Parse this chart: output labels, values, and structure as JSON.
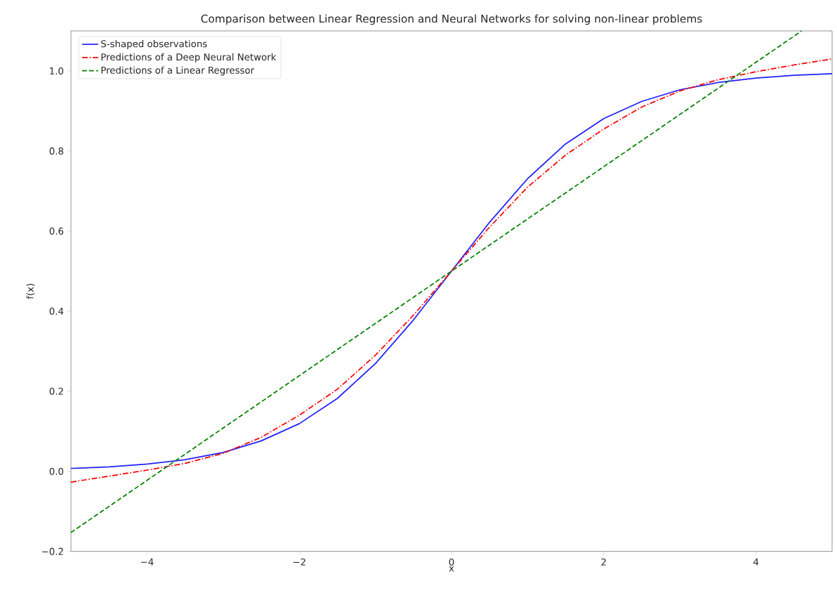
{
  "chart_data": {
    "type": "line",
    "title": "Comparison between Linear Regression and Neural Networks for solving non-linear problems",
    "xlabel": "x",
    "ylabel": "f(x)",
    "xlim": [
      -5,
      5
    ],
    "ylim": [
      -0.2,
      1.1
    ],
    "xticks": [
      {
        "value": -4,
        "label": "−4"
      },
      {
        "value": -2,
        "label": "−2"
      },
      0,
      2,
      4
    ],
    "yticks": [
      {
        "value": -0.2,
        "label": "−0.2"
      },
      {
        "value": 0,
        "label": "0.0"
      },
      {
        "value": 0.2,
        "label": "0.2"
      },
      {
        "value": 0.4,
        "label": "0.4"
      },
      {
        "value": 0.6,
        "label": "0.6"
      },
      {
        "value": 0.8,
        "label": "0.8"
      },
      {
        "value": 1,
        "label": "1.0"
      }
    ],
    "legend": "top left",
    "grid": false,
    "series": [
      {
        "name": "S-shaped observations",
        "color": "#2020ff",
        "line_style": "solid",
        "x": [
          -5,
          -4.5,
          -4,
          -3.5,
          -3,
          -2.5,
          -2,
          -1.5,
          -1,
          -0.5,
          0,
          0.5,
          1,
          1.5,
          2,
          2.5,
          3,
          3.5,
          4,
          4.5,
          5
        ],
        "values": [
          0.007,
          0.011,
          0.018,
          0.029,
          0.047,
          0.076,
          0.119,
          0.182,
          0.269,
          0.378,
          0.5,
          0.622,
          0.731,
          0.818,
          0.881,
          0.924,
          0.953,
          0.971,
          0.982,
          0.989,
          0.993
        ]
      },
      {
        "name": "Predictions of a Deep Neural Network",
        "color": "#ff0000",
        "line_style": "dashdot",
        "x": [
          -5,
          -4.5,
          -4,
          -3.5,
          -3,
          -2.5,
          -2,
          -1.5,
          -1,
          -0.5,
          0,
          0.5,
          1,
          1.5,
          2,
          2.5,
          3,
          3.5,
          4,
          4.5,
          5
        ],
        "values": [
          -0.027,
          -0.012,
          0.003,
          0.02,
          0.045,
          0.085,
          0.14,
          0.205,
          0.29,
          0.39,
          0.5,
          0.61,
          0.71,
          0.79,
          0.855,
          0.91,
          0.95,
          0.978,
          0.998,
          1.015,
          1.03
        ]
      },
      {
        "name": "Predictions of a Linear Regressor",
        "color": "#008000",
        "line_style": "dashed",
        "x": [
          -5,
          0,
          4.6
        ],
        "values": [
          -0.153,
          0.5,
          1.1
        ]
      }
    ]
  }
}
